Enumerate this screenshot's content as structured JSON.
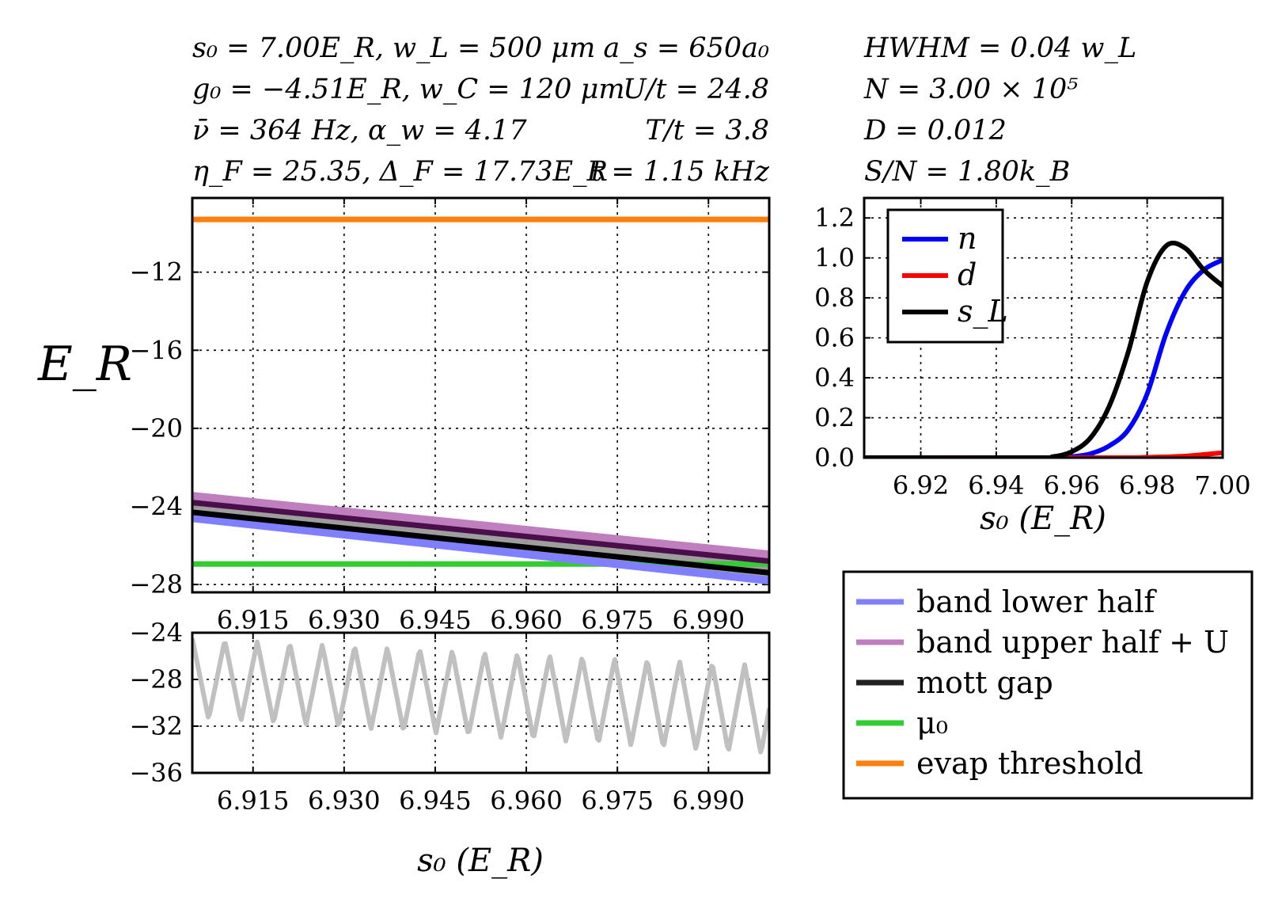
{
  "params_left": [
    "s₀ = 7.00E_R, w_L = 500 μm",
    "g₀ = −4.51E_R, w_C = 120 μm",
    "ν̄ = 364 Hz, α_w = 4.17",
    "η_F = 25.35, Δ_F = 17.73E_R"
  ],
  "params_mid": [
    "a_s = 650a₀",
    "U/t = 24.8",
    "T/t = 3.8",
    "t = 1.15 kHz"
  ],
  "params_right": [
    "HWHM = 0.04 w_L",
    "N = 3.00 × 10⁵",
    "D = 0.012",
    "S/N = 1.80k_B"
  ],
  "colors": {
    "band_lower": "#7f7fff",
    "band_upper": "#bf7fbf",
    "mott": "#222222",
    "mu0": "#33cc33",
    "evap": "#ff7f0e",
    "osc": "#c0c0c0",
    "n": "#0000ff",
    "d": "#ff0000",
    "sL": "#000000"
  },
  "chart_data": [
    {
      "id": "energy",
      "type": "line",
      "ylabel": "E_R",
      "xlim": [
        6.905,
        7.0
      ],
      "ylim": [
        -28.4,
        -8.2
      ],
      "xticks": [
        "6.915",
        "6.930",
        "6.945",
        "6.960",
        "6.975",
        "6.990"
      ],
      "xtick_values": [
        6.915,
        6.93,
        6.945,
        6.96,
        6.975,
        6.99
      ],
      "yticks": [
        "−12",
        "−16",
        "−20",
        "−24",
        "−28"
      ],
      "ytick_values": [
        -12,
        -16,
        -20,
        -24,
        -28
      ],
      "grid": true,
      "series": [
        {
          "name": "band lower half",
          "x": [
            6.905,
            7.0
          ],
          "y": [
            -24.6,
            -27.8
          ]
        },
        {
          "name": "band upper half + U",
          "x": [
            6.905,
            7.0
          ],
          "y": [
            -23.5,
            -26.5
          ]
        },
        {
          "name": "mott gap",
          "x": [
            6.905,
            7.0
          ],
          "y": [
            -24.3,
            -27.4
          ]
        },
        {
          "name": "μ₀",
          "x": [
            6.905,
            7.0
          ],
          "y": [
            -26.95,
            -26.95
          ]
        },
        {
          "name": "evap threshold",
          "x": [
            6.905,
            7.0
          ],
          "y": [
            -9.3,
            -9.3
          ]
        }
      ]
    },
    {
      "id": "oscillation",
      "type": "line",
      "xlim": [
        6.905,
        7.0
      ],
      "ylim": [
        -36,
        -24
      ],
      "xticks": [
        "6.915",
        "6.930",
        "6.945",
        "6.960",
        "6.975",
        "6.990"
      ],
      "xtick_values": [
        6.915,
        6.93,
        6.945,
        6.96,
        6.975,
        6.99
      ],
      "yticks": [
        "−24",
        "−28",
        "−32",
        "−36"
      ],
      "ytick_values": [
        -24,
        -28,
        -32,
        -36
      ],
      "xlabel": "s₀ (E_R)",
      "grid": true,
      "series": [
        {
          "name": "",
          "x_start": 6.905,
          "x_end": 7.0,
          "period": 0.00535,
          "max": [
            -24.5,
            -26.8
          ],
          "min": [
            -31.3,
            -34.4
          ]
        }
      ]
    },
    {
      "id": "fractions",
      "type": "line",
      "xlim": [
        6.905,
        7.0
      ],
      "ylim": [
        0,
        1.3
      ],
      "xticks": [
        "6.92",
        "6.94",
        "6.96",
        "6.98",
        "7.00"
      ],
      "xtick_values": [
        6.92,
        6.94,
        6.96,
        6.98,
        7.0
      ],
      "yticks": [
        "0.0",
        "0.2",
        "0.4",
        "0.6",
        "0.8",
        "1.0",
        "1.2"
      ],
      "ytick_values": [
        0,
        0.2,
        0.4,
        0.6,
        0.8,
        1.0,
        1.2
      ],
      "xlabel": "s₀ (E_R)",
      "grid": true,
      "legend": "top-left",
      "series": [
        {
          "name": "n",
          "x": [
            6.905,
            6.955,
            6.96,
            6.965,
            6.97,
            6.975,
            6.98,
            6.985,
            6.99,
            6.995,
            7.0
          ],
          "y": [
            0,
            0,
            0.005,
            0.02,
            0.06,
            0.14,
            0.32,
            0.62,
            0.83,
            0.94,
            0.99
          ]
        },
        {
          "name": "d",
          "x": [
            6.905,
            6.97,
            6.98,
            6.99,
            7.0
          ],
          "y": [
            0,
            0,
            0.002,
            0.008,
            0.025
          ]
        },
        {
          "name": "s_L",
          "x": [
            6.905,
            6.95,
            6.955,
            6.96,
            6.965,
            6.97,
            6.975,
            6.98,
            6.985,
            6.99,
            6.995,
            7.0
          ],
          "y": [
            0,
            0,
            0.005,
            0.03,
            0.1,
            0.26,
            0.53,
            0.88,
            1.06,
            1.05,
            0.94,
            0.86
          ]
        }
      ]
    }
  ],
  "legend_main": [
    {
      "label": "band lower half",
      "color": "#7f7fff"
    },
    {
      "label": "band upper half + U",
      "color": "#bf7fbf"
    },
    {
      "label": "mott gap",
      "color": "#222222"
    },
    {
      "label": "μ₀",
      "color": "#33cc33"
    },
    {
      "label": "evap threshold",
      "color": "#ff7f0e"
    }
  ],
  "legend_right": [
    {
      "label": "n",
      "color": "#0000ff"
    },
    {
      "label": "d",
      "color": "#ff0000"
    },
    {
      "label": "s_L",
      "color": "#000000"
    }
  ]
}
